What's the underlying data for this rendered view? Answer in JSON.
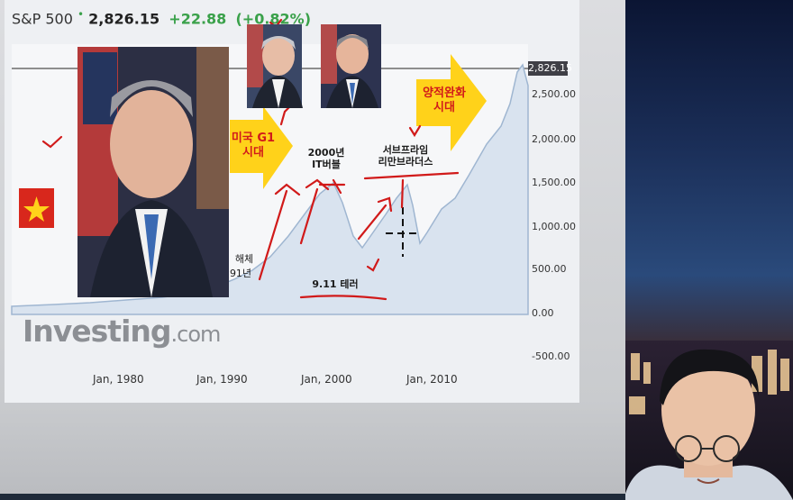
{
  "ticker": {
    "symbol": "S&P 500",
    "price": "2,826.15",
    "change": "+22.88",
    "pct": "(+0.82%)"
  },
  "chart": {
    "last_value_label": "2,826.15",
    "y_ticks": [
      "2,500.00",
      "2,000.00",
      "1,500.00",
      "1,000.00",
      "500.00",
      "0.00",
      "-500.00"
    ],
    "x_ticks": [
      "Jan, 1980",
      "Jan, 1990",
      "Jan, 2000",
      "Jan, 2010"
    ],
    "logo_main": "Investing",
    "logo_suffix": ".com"
  },
  "annotations": {
    "g1_era": "미국 G1\n시대",
    "qe_era": "양적완화\n시대",
    "dotcom": "2000년\nIT버블",
    "subprime": "서브프라임\n리만브라더스",
    "sept11": "9.11 테러",
    "dissolution_top": "해체",
    "dissolution_year": "91년"
  },
  "colors": {
    "chart_fill": "#d9e3ef",
    "chart_line": "#9fb6d1",
    "ink_red": "#d11a1a",
    "arrow_yellow": "#ffd21a",
    "up_green": "#3aa14a"
  }
}
